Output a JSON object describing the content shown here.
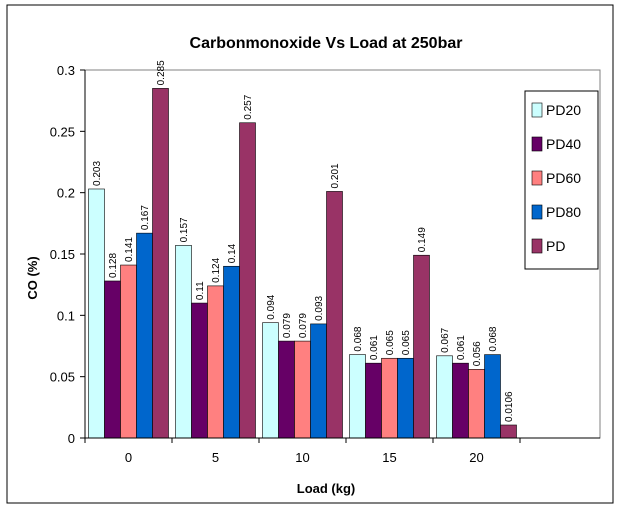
{
  "chart_data": {
    "type": "bar",
    "title": "Carbonmonoxide Vs Load at 250bar",
    "xlabel": "Load (kg)",
    "ylabel": "CO (%)",
    "ylim": [
      0,
      0.3
    ],
    "yticks": [
      "0",
      "0.05",
      "0.1",
      "0.15",
      "0.2",
      "0.25",
      "0.3"
    ],
    "grid": false,
    "legend_position": "right",
    "categories": [
      "0",
      "5",
      "10",
      "15",
      "20"
    ],
    "series": [
      {
        "name": "PD20",
        "color": "#ccffff",
        "values": [
          0.203,
          0.157,
          0.094,
          0.068,
          0.067
        ],
        "labels": [
          "0.203",
          "0.157",
          "0.094",
          "0.068",
          "0.067"
        ]
      },
      {
        "name": "PD40",
        "color": "#660066",
        "values": [
          0.128,
          0.11,
          0.079,
          0.061,
          0.061
        ],
        "labels": [
          "0.128",
          "0.11",
          "0.079",
          "0.061",
          "0.061"
        ]
      },
      {
        "name": "PD60",
        "color": "#ff8080",
        "values": [
          0.141,
          0.124,
          0.079,
          0.065,
          0.056
        ],
        "labels": [
          "0.141",
          "0.124",
          "0.079",
          "0.065",
          "0.056"
        ]
      },
      {
        "name": "PD80",
        "color": "#0066cc",
        "values": [
          0.167,
          0.14,
          0.093,
          0.065,
          0.068
        ],
        "labels": [
          "0.167",
          "0.14",
          "0.093",
          "0.065",
          "0.068"
        ]
      },
      {
        "name": "PD",
        "color": "#993366",
        "values": [
          0.285,
          0.257,
          0.201,
          0.149,
          0.0106
        ],
        "labels": [
          "0.285",
          "0.257",
          "0.201",
          "0.149",
          "0.0106"
        ]
      }
    ]
  }
}
